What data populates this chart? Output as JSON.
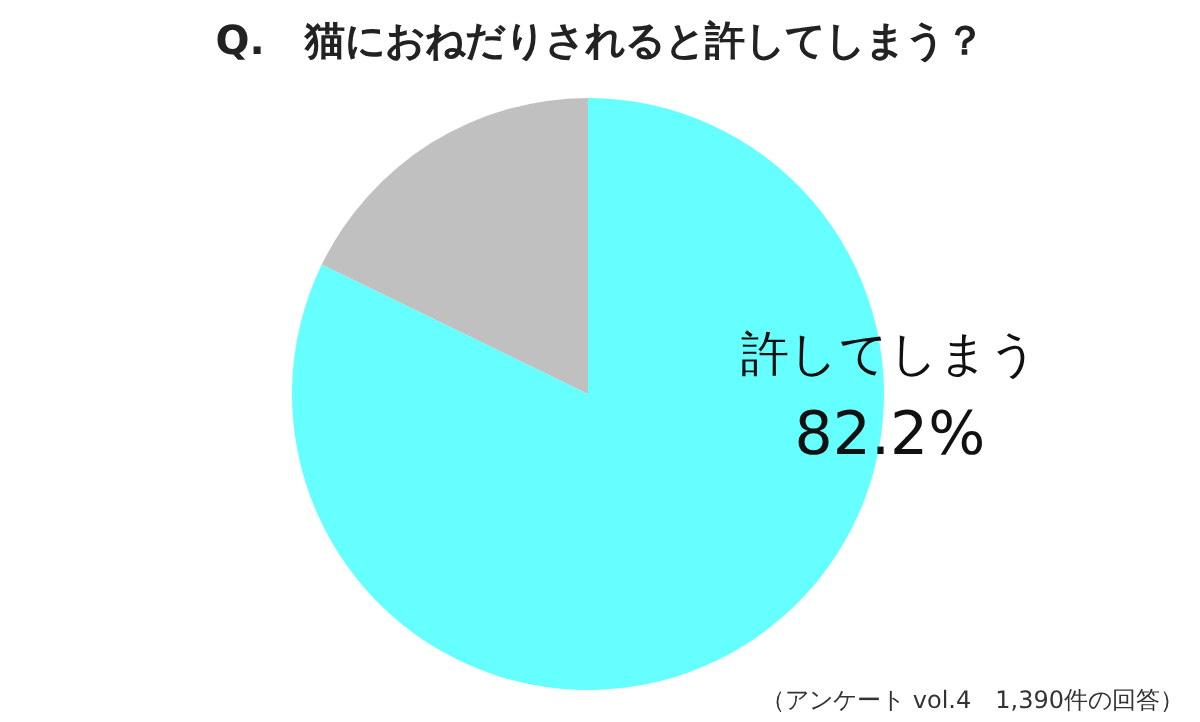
{
  "chart_data": {
    "type": "pie",
    "title": "Q.　猫におねだりされると許してしまう？",
    "categories": [
      "許してしまう",
      null
    ],
    "values": [
      82.2,
      17.8
    ],
    "value_labels": [
      "82.2%",
      null
    ],
    "colors": [
      "#66ffff",
      "#c0c0c0"
    ],
    "annotations": [
      "（アンケート vol.4　1,390件の回答）"
    ]
  }
}
